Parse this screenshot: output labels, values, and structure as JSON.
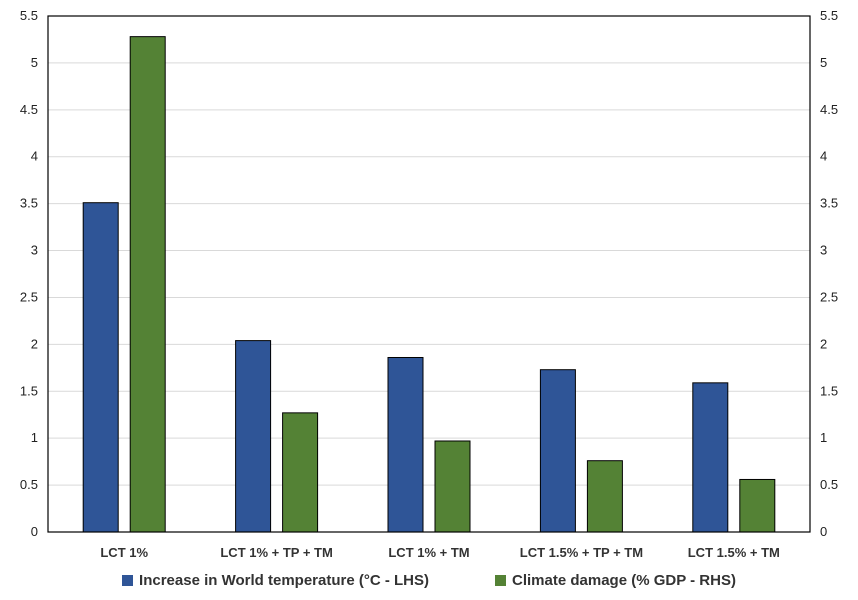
{
  "chart_data": {
    "type": "bar",
    "categories": [
      "LCT 1%",
      "LCT 1% + TP + TM",
      "LCT 1% + TM",
      "LCT 1.5% + TP + TM",
      "LCT 1.5% + TM"
    ],
    "series": [
      {
        "name": "Increase in World temperature (°C - LHS)",
        "values": [
          3.51,
          2.04,
          1.86,
          1.73,
          1.59
        ],
        "color": "#2F5597",
        "axis": "left"
      },
      {
        "name": "Climate damage (% GDP - RHS)",
        "values": [
          5.28,
          1.27,
          0.97,
          0.76,
          0.56
        ],
        "color": "#548235",
        "axis": "right"
      }
    ],
    "y_ticks": [
      "0",
      "0.5",
      "1",
      "1.5",
      "2",
      "2.5",
      "3",
      "3.5",
      "4",
      "4.5",
      "5",
      "5.5"
    ],
    "ylim": [
      0,
      5.5
    ],
    "y2lim": [
      0,
      5.5
    ],
    "grid": true,
    "legend_position": "bottom"
  }
}
